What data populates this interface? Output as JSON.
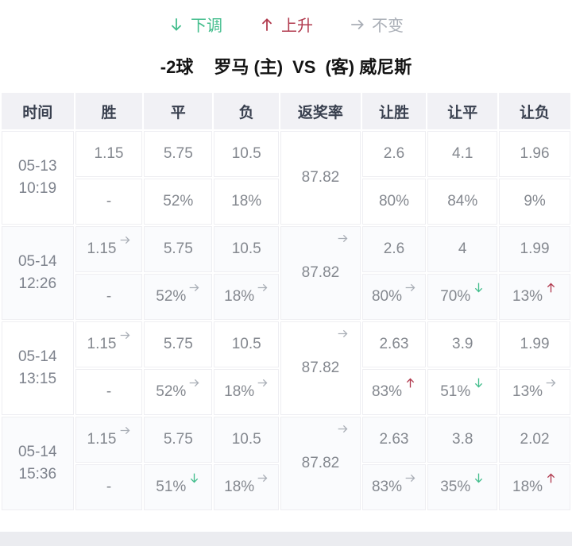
{
  "colors": {
    "trend-down": "#42bd8c",
    "trend-up": "#b13a4e",
    "trend-same": "#a9aeb6",
    "header-bg": "#f1f1f5",
    "header-text": "#39404f",
    "cell-text": "#84888f",
    "page-bottom": "#ebecf0"
  },
  "legend": {
    "down": {
      "label": "下调",
      "icon": "down-arrow-icon",
      "color": "#42bd8c"
    },
    "up": {
      "label": "上升",
      "icon": "up-arrow-icon",
      "color": "#b13a4e"
    },
    "same": {
      "label": "不变",
      "icon": "right-arrow-icon",
      "color": "#a9aeb6"
    }
  },
  "title": {
    "handicap": "-2球",
    "home": "罗马 (主)",
    "vs": "VS",
    "away": "(客) 威尼斯"
  },
  "table": {
    "headers": [
      "时间",
      "胜",
      "平",
      "负",
      "返奖率",
      "让胜",
      "让平",
      "让负"
    ],
    "rows": [
      {
        "date": "05-13",
        "time": "10:19",
        "odds": [
          {
            "v": "1.15"
          },
          {
            "v": "5.75"
          },
          {
            "v": "10.5"
          }
        ],
        "return_rate": {
          "v": "87.82"
        },
        "handicap_odds": [
          {
            "v": "2.6"
          },
          {
            "v": "4.1"
          },
          {
            "v": "1.96"
          }
        ],
        "pcts": [
          {
            "v": "-"
          },
          {
            "v": "52%"
          },
          {
            "v": "18%"
          },
          {
            "v": "80%"
          },
          {
            "v": "84%"
          },
          {
            "v": "9%"
          }
        ]
      },
      {
        "date": "05-14",
        "time": "12:26",
        "odds": [
          {
            "v": "1.15",
            "t": "same"
          },
          {
            "v": "5.75"
          },
          {
            "v": "10.5"
          }
        ],
        "return_rate": {
          "v": "87.82",
          "t": "same"
        },
        "handicap_odds": [
          {
            "v": "2.6"
          },
          {
            "v": "4"
          },
          {
            "v": "1.99"
          }
        ],
        "pcts": [
          {
            "v": "-"
          },
          {
            "v": "52%",
            "t": "same"
          },
          {
            "v": "18%",
            "t": "same"
          },
          {
            "v": "80%",
            "t": "same"
          },
          {
            "v": "70%",
            "t": "down"
          },
          {
            "v": "13%",
            "t": "up"
          }
        ]
      },
      {
        "date": "05-14",
        "time": "13:15",
        "odds": [
          {
            "v": "1.15",
            "t": "same"
          },
          {
            "v": "5.75"
          },
          {
            "v": "10.5"
          }
        ],
        "return_rate": {
          "v": "87.82",
          "t": "same"
        },
        "handicap_odds": [
          {
            "v": "2.63"
          },
          {
            "v": "3.9"
          },
          {
            "v": "1.99"
          }
        ],
        "pcts": [
          {
            "v": "-"
          },
          {
            "v": "52%",
            "t": "same"
          },
          {
            "v": "18%",
            "t": "same"
          },
          {
            "v": "83%",
            "t": "up"
          },
          {
            "v": "51%",
            "t": "down"
          },
          {
            "v": "13%",
            "t": "same"
          }
        ]
      },
      {
        "date": "05-14",
        "time": "15:36",
        "odds": [
          {
            "v": "1.15",
            "t": "same"
          },
          {
            "v": "5.75"
          },
          {
            "v": "10.5"
          }
        ],
        "return_rate": {
          "v": "87.82",
          "t": "same"
        },
        "handicap_odds": [
          {
            "v": "2.63"
          },
          {
            "v": "3.8"
          },
          {
            "v": "2.02"
          }
        ],
        "pcts": [
          {
            "v": "-"
          },
          {
            "v": "51%",
            "t": "down"
          },
          {
            "v": "18%",
            "t": "same"
          },
          {
            "v": "83%",
            "t": "same"
          },
          {
            "v": "35%",
            "t": "down"
          },
          {
            "v": "18%",
            "t": "up"
          }
        ]
      }
    ]
  }
}
